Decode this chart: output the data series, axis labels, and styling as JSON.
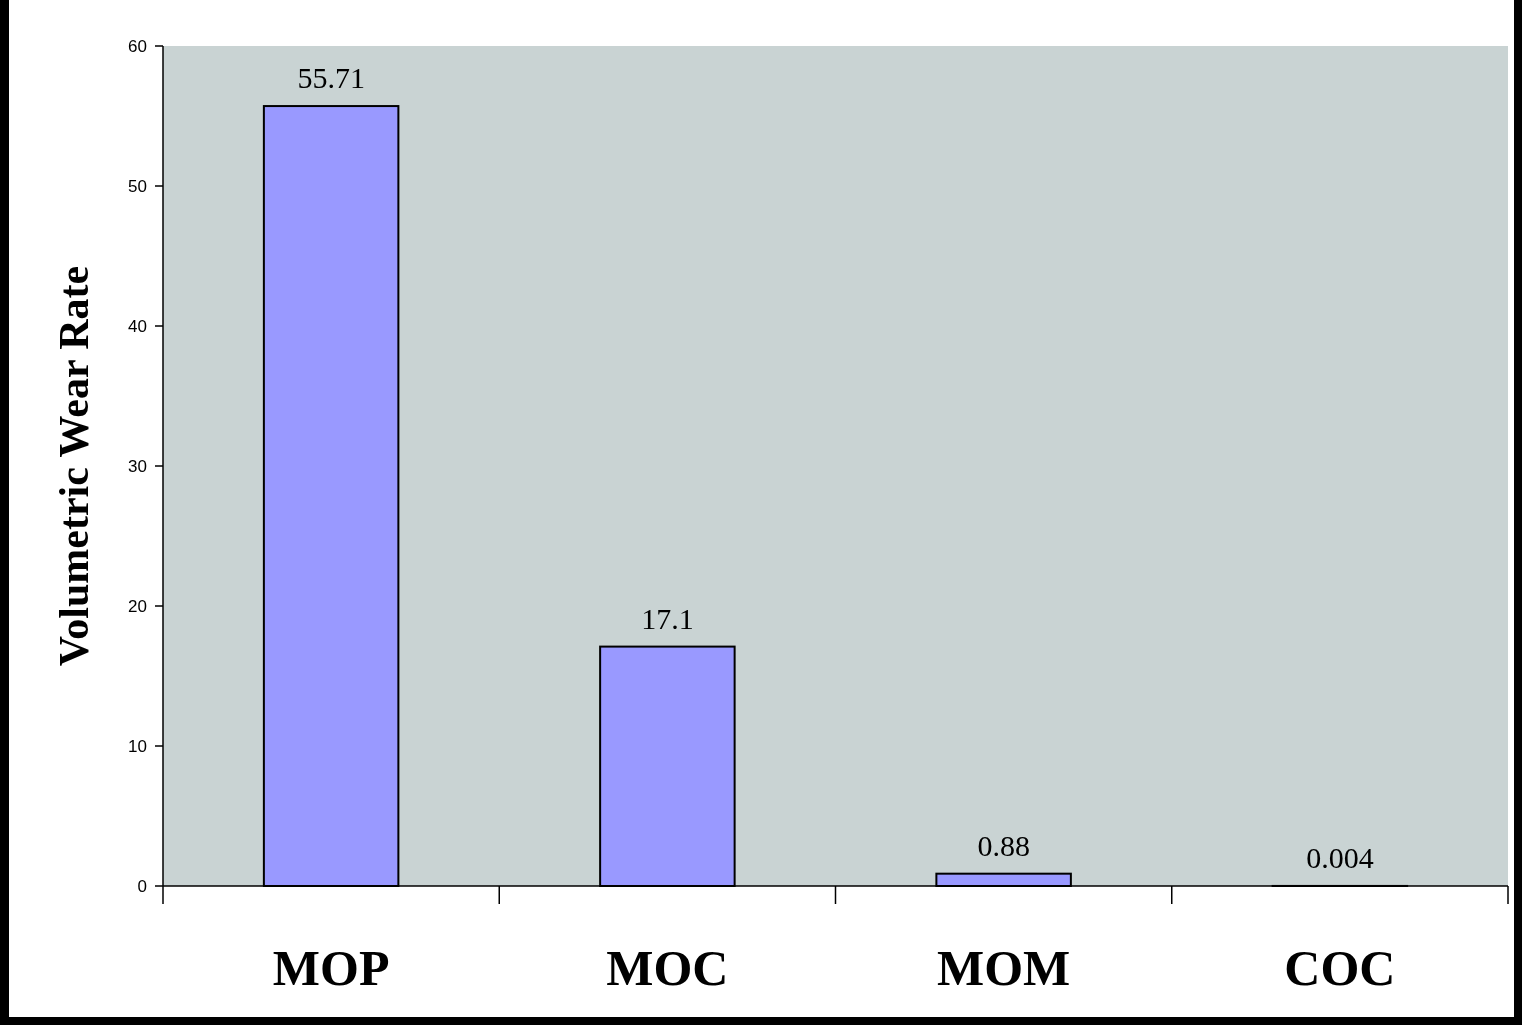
{
  "chart_data": {
    "type": "bar",
    "ylabel": "Volumetric Wear Rate",
    "categories": [
      "MOP",
      "MOC",
      "MOM",
      "COC"
    ],
    "values": [
      55.71,
      17.1,
      0.88,
      0.004
    ],
    "color": "#9999ff",
    "ylim": [
      0,
      60
    ],
    "yticks": [
      0,
      10,
      20,
      30,
      40,
      50,
      60
    ],
    "data_labels": true
  }
}
